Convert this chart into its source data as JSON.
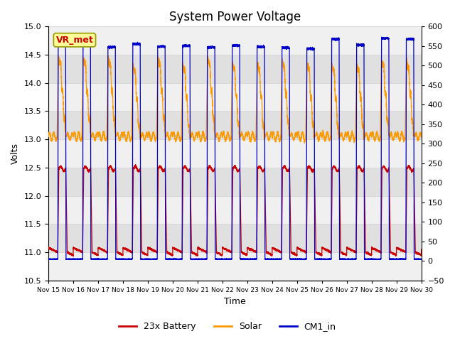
{
  "title": "System Power Voltage",
  "xlabel": "Time",
  "ylabel": "Volts",
  "ylim_left": [
    10.5,
    15.0
  ],
  "ylim_right": [
    -50,
    600
  ],
  "yticks_left": [
    10.5,
    11.0,
    11.5,
    12.0,
    12.5,
    13.0,
    13.5,
    14.0,
    14.5,
    15.0
  ],
  "yticks_right": [
    -50,
    0,
    50,
    100,
    150,
    200,
    250,
    300,
    350,
    400,
    450,
    500,
    550,
    600
  ],
  "xlim": [
    0,
    15
  ],
  "xtick_positions": [
    0,
    1,
    2,
    3,
    4,
    5,
    6,
    7,
    8,
    9,
    10,
    11,
    12,
    13,
    14,
    15
  ],
  "xtick_labels": [
    "Nov 15",
    "Nov 16",
    "Nov 17",
    "Nov 18",
    "Nov 19",
    "Nov 20",
    "Nov 21",
    "Nov 22",
    "Nov 23",
    "Nov 24",
    "Nov 25",
    "Nov 26",
    "Nov 27",
    "Nov 28",
    "Nov 29",
    "Nov 30"
  ],
  "legend_labels": [
    "23x Battery",
    "Solar",
    "CM1_in"
  ],
  "legend_colors": [
    "#cc0000",
    "#ff9900",
    "#0000cc"
  ],
  "n_days": 15,
  "annotation_text": "VR_met",
  "annotation_box_facecolor": "#ffff99",
  "annotation_box_edgecolor": "#999900",
  "annotation_text_color": "#cc0000",
  "background_color": "#ffffff",
  "plot_bg_light": "#f0f0f0",
  "plot_bg_dark": "#e0e0e0",
  "grid_color": "#d8d8d8",
  "title_fontsize": 12,
  "label_fontsize": 9,
  "tick_fontsize": 8
}
